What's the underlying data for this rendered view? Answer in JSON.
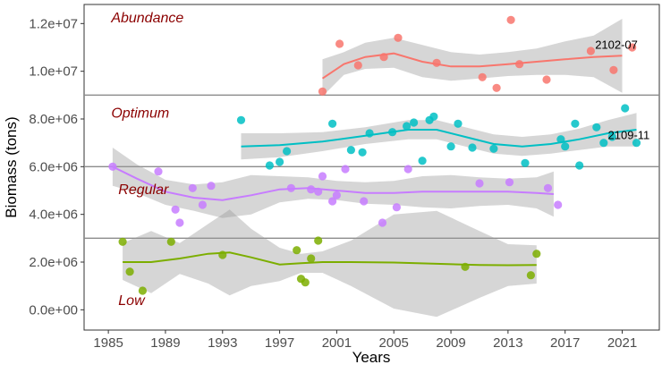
{
  "chart_data": {
    "type": "scatter",
    "xlabel": "Years",
    "ylabel": "Biomass (tons)",
    "xlim": [
      1983.3,
      2023.6
    ],
    "ylim": [
      -850000,
      12800000
    ],
    "x_ticks": [
      1985,
      1989,
      1993,
      1997,
      2001,
      2005,
      2009,
      2013,
      2017,
      2021
    ],
    "y_ticks": [
      0,
      2000000,
      4000000,
      6000000,
      8000000,
      10000000,
      12000000
    ],
    "y_tick_labels": [
      "0.0e+00",
      "2.0e+06",
      "4.0e+06",
      "6.0e+06",
      "8.0e+06",
      "1.0e+07",
      "1.2e+07"
    ],
    "grid": false,
    "threshold_lines": [
      3000000,
      6000000,
      9000000
    ],
    "band_labels": [
      {
        "text": "Abundance",
        "x": 1985.2,
        "y": 12050000
      },
      {
        "text": "Optimum",
        "x": 1985.2,
        "y": 8050000
      },
      {
        "text": "Regular",
        "x": 1985.7,
        "y": 4850000
      },
      {
        "text": "Low",
        "x": 1985.7,
        "y": 200000
      }
    ],
    "annotations": [
      {
        "text": "2102-07",
        "x": 2019.1,
        "y": 10950000
      },
      {
        "text": "2109-11",
        "x": 2020.0,
        "y": 7150000
      }
    ],
    "series": [
      {
        "color": "#f8766d",
        "points": [
          [
            2000.0,
            9150000
          ],
          [
            2001.2,
            11150000
          ],
          [
            2002.5,
            10250000
          ],
          [
            2004.3,
            10600000
          ],
          [
            2005.3,
            11400000
          ],
          [
            2008.0,
            10350000
          ],
          [
            2011.2,
            9750000
          ],
          [
            2012.2,
            9300000
          ],
          [
            2013.2,
            12150000
          ],
          [
            2013.8,
            10300000
          ],
          [
            2015.7,
            9650000
          ],
          [
            2018.8,
            10850000
          ],
          [
            2020.4,
            10050000
          ],
          [
            2021.7,
            11000000
          ]
        ],
        "smooth": [
          [
            2000.0,
            9700000
          ],
          [
            2001.5,
            10300000
          ],
          [
            2003.0,
            10600000
          ],
          [
            2005.0,
            10750000
          ],
          [
            2007.0,
            10400000
          ],
          [
            2009.0,
            10200000
          ],
          [
            2011.0,
            10200000
          ],
          [
            2013.0,
            10300000
          ],
          [
            2015.0,
            10400000
          ],
          [
            2017.0,
            10500000
          ],
          [
            2019.0,
            10600000
          ],
          [
            2021.0,
            10650000
          ]
        ],
        "band": [
          [
            2000.0,
            8950000,
            10500000
          ],
          [
            2001.5,
            9850000,
            10800000
          ],
          [
            2003.0,
            10100000,
            11200000
          ],
          [
            2005.0,
            10150000,
            11400000
          ],
          [
            2007.0,
            9750000,
            11100000
          ],
          [
            2009.0,
            9600000,
            10800000
          ],
          [
            2011.0,
            9700000,
            10700000
          ],
          [
            2013.0,
            9800000,
            10800000
          ],
          [
            2015.0,
            9850000,
            10950000
          ],
          [
            2017.0,
            9850000,
            11250000
          ],
          [
            2019.0,
            9750000,
            11500000
          ],
          [
            2021.0,
            9100000,
            12200000
          ]
        ]
      },
      {
        "color": "#00bfc4",
        "points": [
          [
            1994.3,
            7950000
          ],
          [
            1996.3,
            6050000
          ],
          [
            1997.0,
            6200000
          ],
          [
            1997.5,
            6650000
          ],
          [
            2000.7,
            7800000
          ],
          [
            2002.0,
            6700000
          ],
          [
            2002.8,
            6600000
          ],
          [
            2003.3,
            7400000
          ],
          [
            2004.9,
            7450000
          ],
          [
            2005.9,
            7700000
          ],
          [
            2006.4,
            7850000
          ],
          [
            2007.0,
            6250000
          ],
          [
            2007.5,
            7950000
          ],
          [
            2007.8,
            8100000
          ],
          [
            2009.0,
            6850000
          ],
          [
            2009.5,
            7800000
          ],
          [
            2010.5,
            6800000
          ],
          [
            2012.0,
            6750000
          ],
          [
            2014.2,
            6150000
          ],
          [
            2016.7,
            7150000
          ],
          [
            2017.0,
            6850000
          ],
          [
            2017.7,
            7800000
          ],
          [
            2018.0,
            6050000
          ],
          [
            2019.2,
            7650000
          ],
          [
            2019.7,
            7000000
          ],
          [
            2020.3,
            7250000
          ],
          [
            2021.2,
            8450000
          ],
          [
            2022.0,
            7000000
          ]
        ],
        "smooth": [
          [
            1994.3,
            6850000
          ],
          [
            1997.0,
            6900000
          ],
          [
            2000.0,
            7050000
          ],
          [
            2003.0,
            7300000
          ],
          [
            2006.0,
            7550000
          ],
          [
            2008.0,
            7550000
          ],
          [
            2010.0,
            7250000
          ],
          [
            2012.0,
            6950000
          ],
          [
            2014.0,
            6850000
          ],
          [
            2016.0,
            6950000
          ],
          [
            2018.0,
            7150000
          ],
          [
            2020.0,
            7400000
          ],
          [
            2022.0,
            7550000
          ]
        ],
        "band": [
          [
            1994.3,
            6300000,
            7400000
          ],
          [
            1997.0,
            6400000,
            7400000
          ],
          [
            2000.0,
            6650000,
            7450000
          ],
          [
            2003.0,
            6950000,
            7650000
          ],
          [
            2006.0,
            7150000,
            7950000
          ],
          [
            2008.0,
            7150000,
            7950000
          ],
          [
            2010.0,
            6850000,
            7650000
          ],
          [
            2012.0,
            6550000,
            7350000
          ],
          [
            2014.0,
            6450000,
            7250000
          ],
          [
            2016.0,
            6550000,
            7350000
          ],
          [
            2018.0,
            6700000,
            7600000
          ],
          [
            2020.0,
            6850000,
            7950000
          ],
          [
            2022.0,
            6850000,
            8250000
          ]
        ]
      },
      {
        "color": "#c77cff",
        "points": [
          [
            1985.3,
            6000000
          ],
          [
            1988.5,
            5800000
          ],
          [
            1989.7,
            4200000
          ],
          [
            1990.0,
            3650000
          ],
          [
            1990.9,
            5100000
          ],
          [
            1991.6,
            4400000
          ],
          [
            1992.2,
            5200000
          ],
          [
            1997.8,
            5100000
          ],
          [
            1999.2,
            5050000
          ],
          [
            1999.7,
            4950000
          ],
          [
            2000.0,
            5600000
          ],
          [
            2000.7,
            4550000
          ],
          [
            2001.0,
            4800000
          ],
          [
            2001.6,
            5900000
          ],
          [
            2002.9,
            4550000
          ],
          [
            2004.2,
            3650000
          ],
          [
            2005.2,
            4300000
          ],
          [
            2006.0,
            5900000
          ],
          [
            2011.0,
            5300000
          ],
          [
            2013.1,
            5350000
          ],
          [
            2015.8,
            5100000
          ],
          [
            2016.5,
            4400000
          ]
        ],
        "smooth": [
          [
            1985.3,
            6000000
          ],
          [
            1987.0,
            5500000
          ],
          [
            1989.0,
            4950000
          ],
          [
            1991.0,
            4700000
          ],
          [
            1993.0,
            4600000
          ],
          [
            1995.0,
            4800000
          ],
          [
            1997.0,
            5050000
          ],
          [
            1999.0,
            5100000
          ],
          [
            2001.0,
            5000000
          ],
          [
            2003.0,
            4900000
          ],
          [
            2005.0,
            4900000
          ],
          [
            2007.0,
            4950000
          ],
          [
            2009.0,
            4950000
          ],
          [
            2011.0,
            4950000
          ],
          [
            2013.0,
            4950000
          ],
          [
            2015.0,
            4900000
          ],
          [
            2016.2,
            4850000
          ]
        ],
        "band": [
          [
            1985.3,
            5200000,
            6800000
          ],
          [
            1987.0,
            4900000,
            6100000
          ],
          [
            1989.0,
            4400000,
            5450000
          ],
          [
            1991.0,
            4150000,
            5250000
          ],
          [
            1993.0,
            3850000,
            5350000
          ],
          [
            1995.0,
            4000000,
            5650000
          ],
          [
            1997.0,
            4500000,
            5600000
          ],
          [
            1999.0,
            4650000,
            5550000
          ],
          [
            2001.0,
            4600000,
            5400000
          ],
          [
            2003.0,
            4450000,
            5350000
          ],
          [
            2005.0,
            4400000,
            5400000
          ],
          [
            2007.0,
            4300000,
            5600000
          ],
          [
            2009.0,
            4250000,
            5650000
          ],
          [
            2011.0,
            4350000,
            5550000
          ],
          [
            2013.0,
            4400000,
            5500000
          ],
          [
            2015.0,
            4250000,
            5550000
          ],
          [
            2016.2,
            3900000,
            5800000
          ]
        ]
      },
      {
        "color": "#7cae00",
        "points": [
          [
            1986.0,
            2850000
          ],
          [
            1986.5,
            1600000
          ],
          [
            1987.4,
            800000
          ],
          [
            1989.4,
            2850000
          ],
          [
            1993.0,
            2300000
          ],
          [
            1998.2,
            2500000
          ],
          [
            1998.5,
            1300000
          ],
          [
            1998.8,
            1150000
          ],
          [
            1999.2,
            2150000
          ],
          [
            1999.7,
            2900000
          ],
          [
            2010.0,
            1800000
          ],
          [
            2014.6,
            1450000
          ],
          [
            2015.0,
            2350000
          ]
        ],
        "smooth": [
          [
            1986.0,
            2000000
          ],
          [
            1988.0,
            2000000
          ],
          [
            1990.0,
            2150000
          ],
          [
            1992.0,
            2350000
          ],
          [
            1993.5,
            2400000
          ],
          [
            1995.0,
            2200000
          ],
          [
            1997.0,
            1900000
          ],
          [
            1998.5,
            1950000
          ],
          [
            2000.0,
            2000000
          ],
          [
            2002.0,
            2000000
          ],
          [
            2005.0,
            1980000
          ],
          [
            2008.0,
            1930000
          ],
          [
            2011.0,
            1880000
          ],
          [
            2013.0,
            1870000
          ],
          [
            2015.0,
            1880000
          ]
        ],
        "band": [
          [
            1986.0,
            1250000,
            2800000
          ],
          [
            1988.0,
            700000,
            3300000
          ],
          [
            1990.0,
            1500000,
            2800000
          ],
          [
            1992.0,
            1100000,
            3600000
          ],
          [
            1993.5,
            600000,
            4200000
          ],
          [
            1995.0,
            1000000,
            3400000
          ],
          [
            1997.0,
            1200000,
            2600000
          ],
          [
            1998.5,
            1550000,
            2350000
          ],
          [
            2000.0,
            1550000,
            2450000
          ],
          [
            2002.0,
            1000000,
            2900000
          ],
          [
            2005.0,
            50000,
            4000000
          ],
          [
            2008.0,
            -300000,
            4150000
          ],
          [
            2011.0,
            500000,
            3300000
          ],
          [
            2013.0,
            1000000,
            2750000
          ],
          [
            2015.0,
            1100000,
            2700000
          ]
        ]
      }
    ]
  }
}
